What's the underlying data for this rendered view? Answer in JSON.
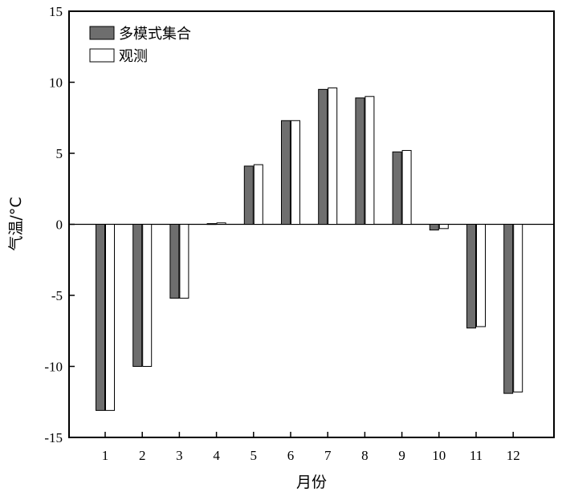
{
  "chart_data": {
    "type": "bar",
    "title": "",
    "xlabel": "月份",
    "ylabel": "气温/°C",
    "categories": [
      "1",
      "2",
      "3",
      "4",
      "5",
      "6",
      "7",
      "8",
      "9",
      "10",
      "11",
      "12"
    ],
    "ylim": [
      -15,
      15
    ],
    "yticks": [
      "15",
      "10",
      "5",
      "0",
      "-5",
      "-10",
      "-15"
    ],
    "ytick_values": [
      15,
      10,
      5,
      0,
      -5,
      -10,
      -15
    ],
    "grid": false,
    "legend_position": "top-left",
    "series": [
      {
        "name": "多模式集合",
        "color": "#6e6e6e",
        "values": [
          -13.1,
          -10.0,
          -5.2,
          0.05,
          4.1,
          7.3,
          9.5,
          8.9,
          5.1,
          -0.4,
          -7.3,
          -11.9
        ]
      },
      {
        "name": "观测",
        "color": "#ffffff",
        "values": [
          -13.1,
          -10.0,
          -5.2,
          0.1,
          4.2,
          7.3,
          9.6,
          9.0,
          5.2,
          -0.3,
          -7.2,
          -11.8
        ]
      }
    ]
  }
}
